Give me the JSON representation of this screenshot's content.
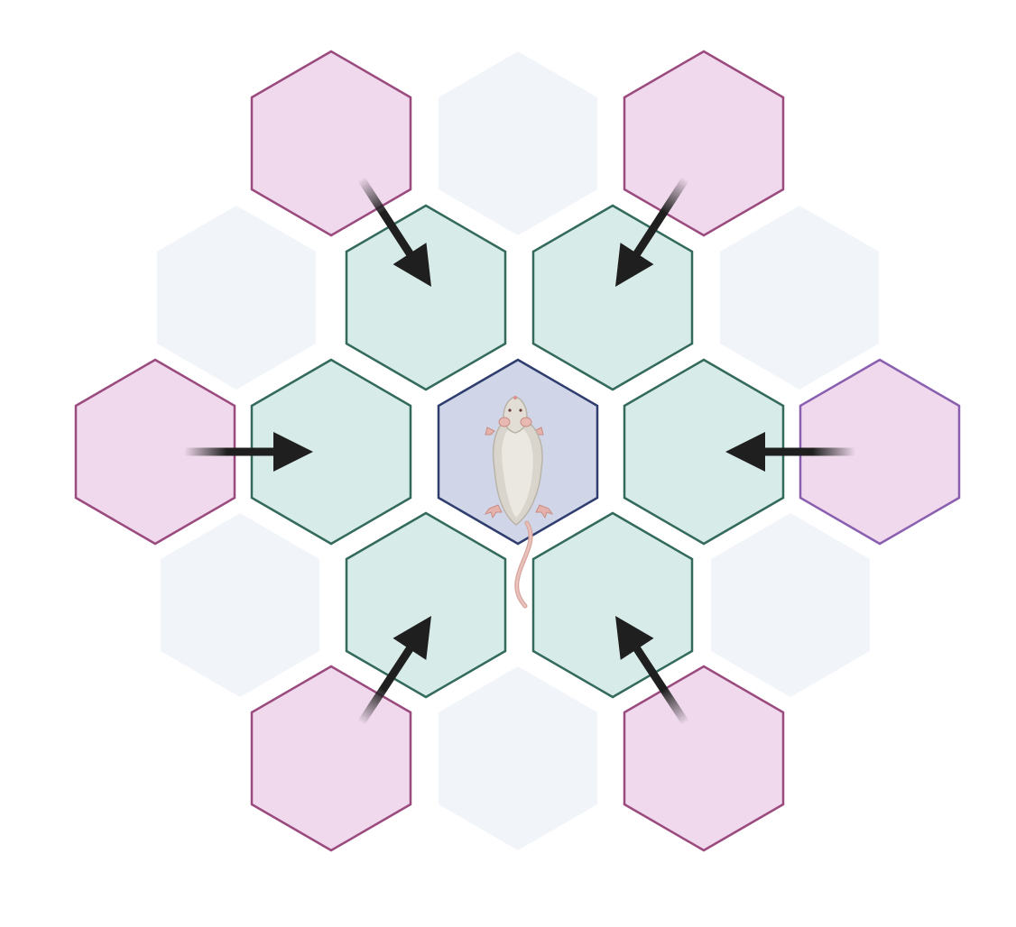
{
  "colors": {
    "background": "#ffffff",
    "faint_fill": "#f1f4f9",
    "pink_fill": "#f0d9ec",
    "pink_stroke": "#9a4a7e",
    "pink_stroke_alt": "#8a5fb0",
    "green_fill": "#d7ebe8",
    "green_stroke": "#336a5b",
    "center_fill": "#d0d6e8",
    "center_stroke": "#2f3e6e",
    "arrow": "#1f1f1f"
  },
  "icons": {
    "center_animal": "rat-icon",
    "arrow": "arrow-icon"
  },
  "hexagons": [
    {
      "id": "top-left-outer",
      "kind": "outer"
    },
    {
      "id": "top-center-faint",
      "kind": "faint"
    },
    {
      "id": "top-right-outer",
      "kind": "outer"
    },
    {
      "id": "upper-left-faint",
      "kind": "faint"
    },
    {
      "id": "upper-left-neighbor",
      "kind": "neighbor"
    },
    {
      "id": "upper-right-neighbor",
      "kind": "neighbor"
    },
    {
      "id": "upper-right-faint",
      "kind": "faint"
    },
    {
      "id": "left-outer",
      "kind": "outer"
    },
    {
      "id": "left-neighbor",
      "kind": "neighbor"
    },
    {
      "id": "center",
      "kind": "center"
    },
    {
      "id": "right-neighbor",
      "kind": "neighbor"
    },
    {
      "id": "right-outer",
      "kind": "outer-alt"
    },
    {
      "id": "lower-left-faint",
      "kind": "faint"
    },
    {
      "id": "lower-left-neighbor",
      "kind": "neighbor"
    },
    {
      "id": "lower-right-neighbor",
      "kind": "neighbor"
    },
    {
      "id": "lower-right-faint",
      "kind": "faint"
    },
    {
      "id": "bottom-left-outer",
      "kind": "outer"
    },
    {
      "id": "bottom-center-faint",
      "kind": "faint"
    },
    {
      "id": "bottom-right-outer",
      "kind": "outer"
    }
  ],
  "arrows": [
    {
      "id": "arrow-top-left",
      "from": "top-left-outer",
      "to": "upper-left-neighbor"
    },
    {
      "id": "arrow-top-right",
      "from": "top-right-outer",
      "to": "upper-right-neighbor"
    },
    {
      "id": "arrow-left",
      "from": "left-outer",
      "to": "left-neighbor"
    },
    {
      "id": "arrow-right",
      "from": "right-outer",
      "to": "right-neighbor"
    },
    {
      "id": "arrow-bottom-left",
      "from": "bottom-left-outer",
      "to": "lower-left-neighbor"
    },
    {
      "id": "arrow-bottom-right",
      "from": "bottom-right-outer",
      "to": "lower-right-neighbor"
    }
  ]
}
